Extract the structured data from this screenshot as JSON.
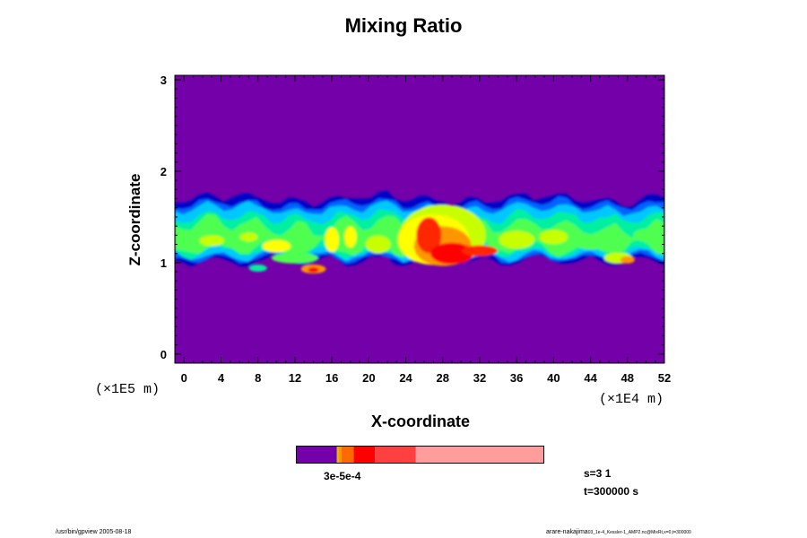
{
  "chart_data": {
    "type": "heatmap",
    "title": "Mixing Ratio",
    "xlabel": "X-coordinate",
    "ylabel": "Z-coordinate",
    "x_scale_note": "(×1E4 m)",
    "y_scale_note": "(×1E5 m)",
    "xlim": [
      -1,
      52
    ],
    "ylim": [
      -0.1,
      3.05
    ],
    "x_ticks": [
      0,
      4,
      8,
      12,
      16,
      20,
      24,
      28,
      32,
      36,
      40,
      44,
      48,
      52
    ],
    "y_ticks": [
      0,
      1,
      2,
      3
    ],
    "background_color": "#7300a8",
    "colormap": [
      "#0000c8",
      "#0064ff",
      "#00c8ff",
      "#00f0a0",
      "#50ff50",
      "#c8ff00",
      "#ffff00",
      "#ff9600",
      "#ff2800",
      "#ff0000"
    ],
    "cloud_layer": {
      "z_range_approx": [
        0.85,
        1.7
      ],
      "description_values": {
        "band_base": 1.1,
        "band_top": 1.62,
        "peak_x": 28,
        "peak_z": 1.1
      }
    },
    "colorbar": {
      "label_text": "3e-5e-4",
      "segments": [
        {
          "color": "#7300a8",
          "frac": 0.165
        },
        {
          "color": "#c8c800",
          "frac": 0.006
        },
        {
          "color": "#ff9600",
          "frac": 0.012
        },
        {
          "color": "#ff6a00",
          "frac": 0.05
        },
        {
          "color": "#ff0000",
          "frac": 0.085
        },
        {
          "color": "#ff4040",
          "frac": 0.165
        },
        {
          "color": "#ff9c9c",
          "frac": 0.517
        }
      ]
    }
  },
  "info": {
    "s_label": "s=3 1",
    "t_label": "t=300000 s"
  },
  "footer": {
    "left": "/usr/bin/gpview 2005-08-18",
    "right_main": "arare-nakajima",
    "right_small": "03_1e-4_Kessler-1_AMP2.nc@MixRt,x=0,t=300000"
  }
}
